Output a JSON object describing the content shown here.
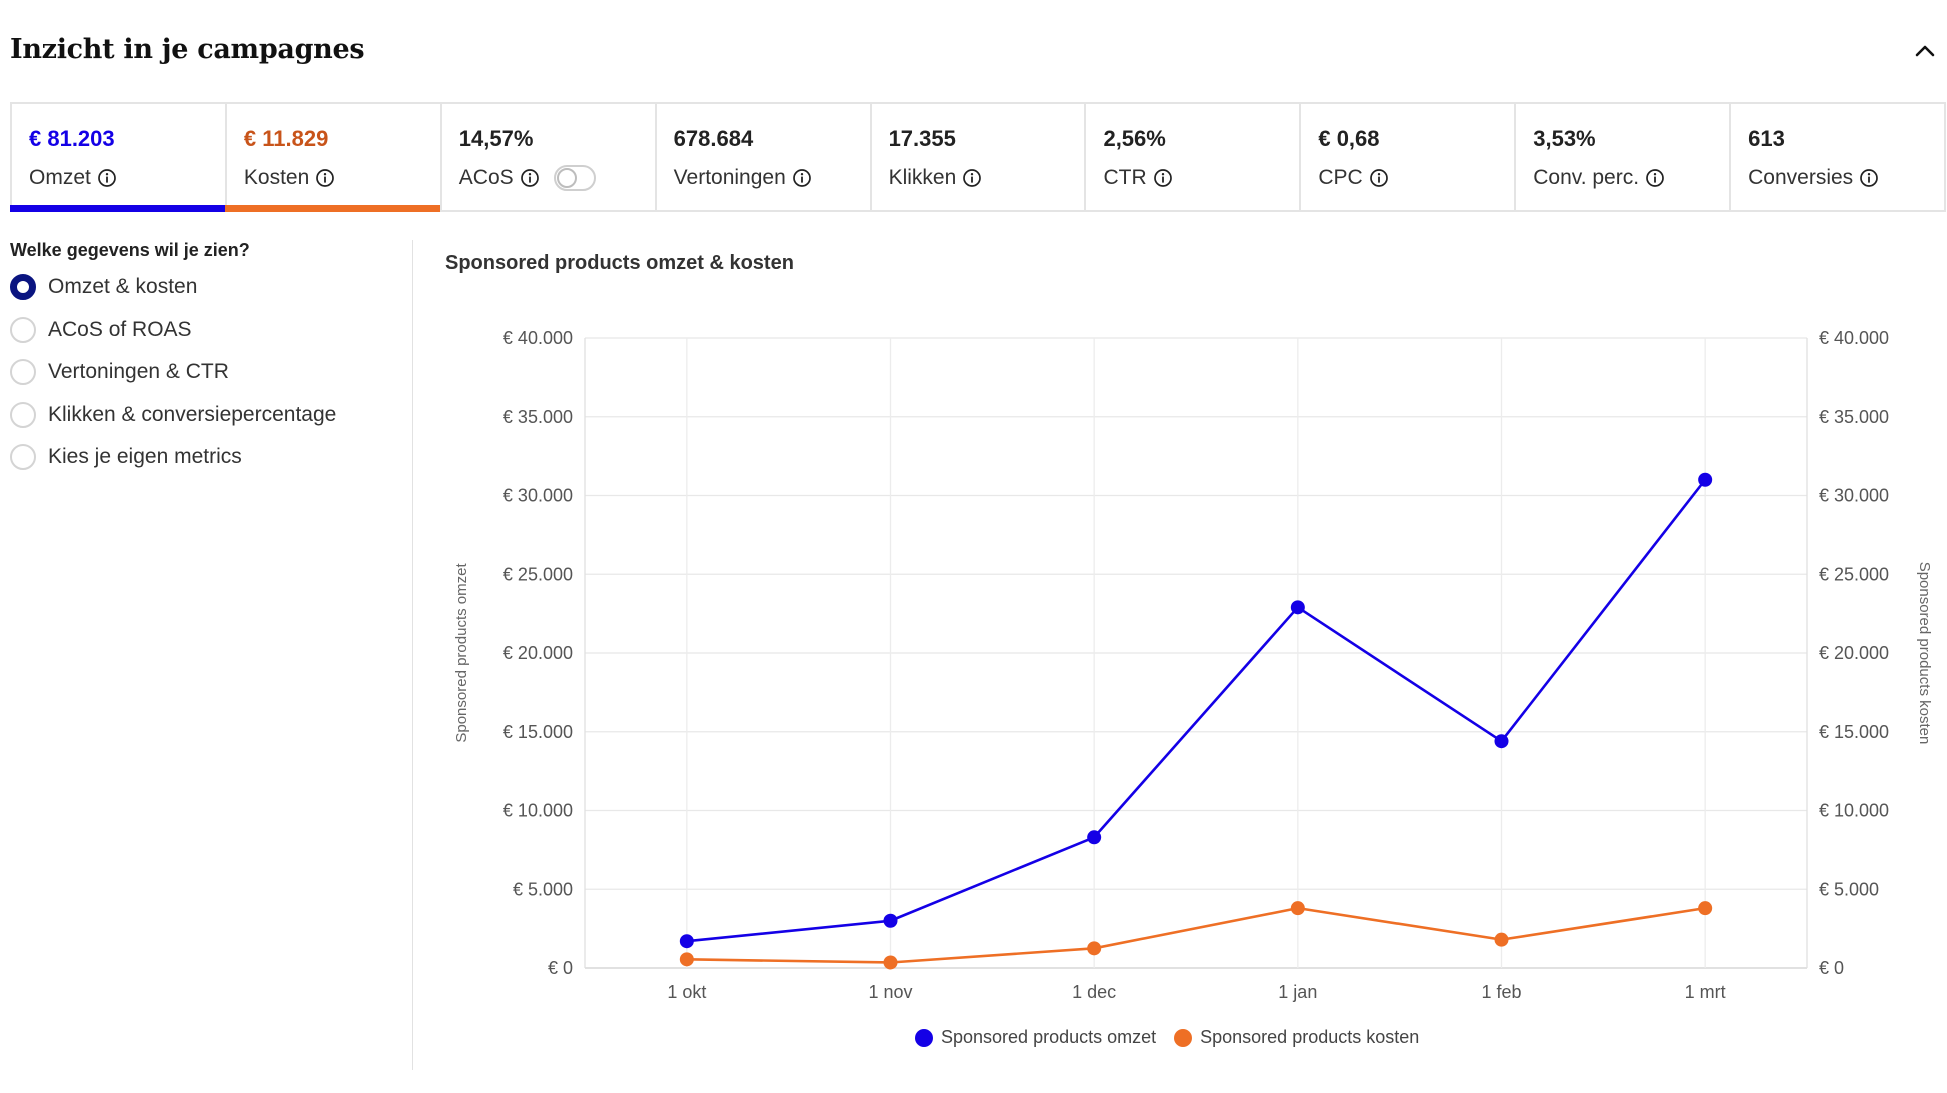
{
  "header": {
    "title": "Inzicht in je campagnes"
  },
  "kpis": [
    {
      "value": "€ 81.203",
      "label": "Omzet",
      "value_color": "#1400e6",
      "underline_color": "#1400e6"
    },
    {
      "value": "€ 11.829",
      "label": "Kosten",
      "value_color": "#c8541a",
      "underline_color": "#ee6f25"
    },
    {
      "value": "14,57%",
      "label": "ACoS",
      "toggle": "off"
    },
    {
      "value": "678.684",
      "label": "Vertoningen"
    },
    {
      "value": "17.355",
      "label": "Klikken"
    },
    {
      "value": "2,56%",
      "label": "CTR"
    },
    {
      "value": "€ 0,68",
      "label": "CPC"
    },
    {
      "value": "3,53%",
      "label": "Conv. perc."
    },
    {
      "value": "613",
      "label": "Conversies"
    }
  ],
  "sidebar": {
    "heading": "Welke gegevens wil je zien?",
    "options": [
      {
        "label": "Omzet & kosten",
        "checked": true
      },
      {
        "label": "ACoS of ROAS",
        "checked": false
      },
      {
        "label": "Vertoningen & CTR",
        "checked": false
      },
      {
        "label": "Klikken & conversiepercentage",
        "checked": false
      },
      {
        "label": "Kies je eigen metrics",
        "checked": false
      }
    ]
  },
  "chart_data": {
    "type": "line",
    "title": "Sponsored products omzet & kosten",
    "categories": [
      "1 okt",
      "1 nov",
      "1 dec",
      "1 jan",
      "1 feb",
      "1 mrt"
    ],
    "series": [
      {
        "name": "Sponsored products omzet",
        "color": "#1400e6",
        "values": [
          1700,
          3000,
          8300,
          22900,
          14400,
          31000
        ]
      },
      {
        "name": "Sponsored products kosten",
        "color": "#ee6f25",
        "values": [
          550,
          350,
          1250,
          3800,
          1800,
          3800
        ]
      }
    ],
    "ylabel_left": "Sponsored products omzet",
    "ylabel_right": "Sponsored products kosten",
    "ylim": [
      0,
      40000
    ],
    "yticks": [
      "€ 0",
      "€ 5.000",
      "€ 10.000",
      "€ 15.000",
      "€ 20.000",
      "€ 25.000",
      "€ 30.000",
      "€ 35.000",
      "€ 40.000"
    ],
    "grid": true,
    "legend": "bottom"
  }
}
